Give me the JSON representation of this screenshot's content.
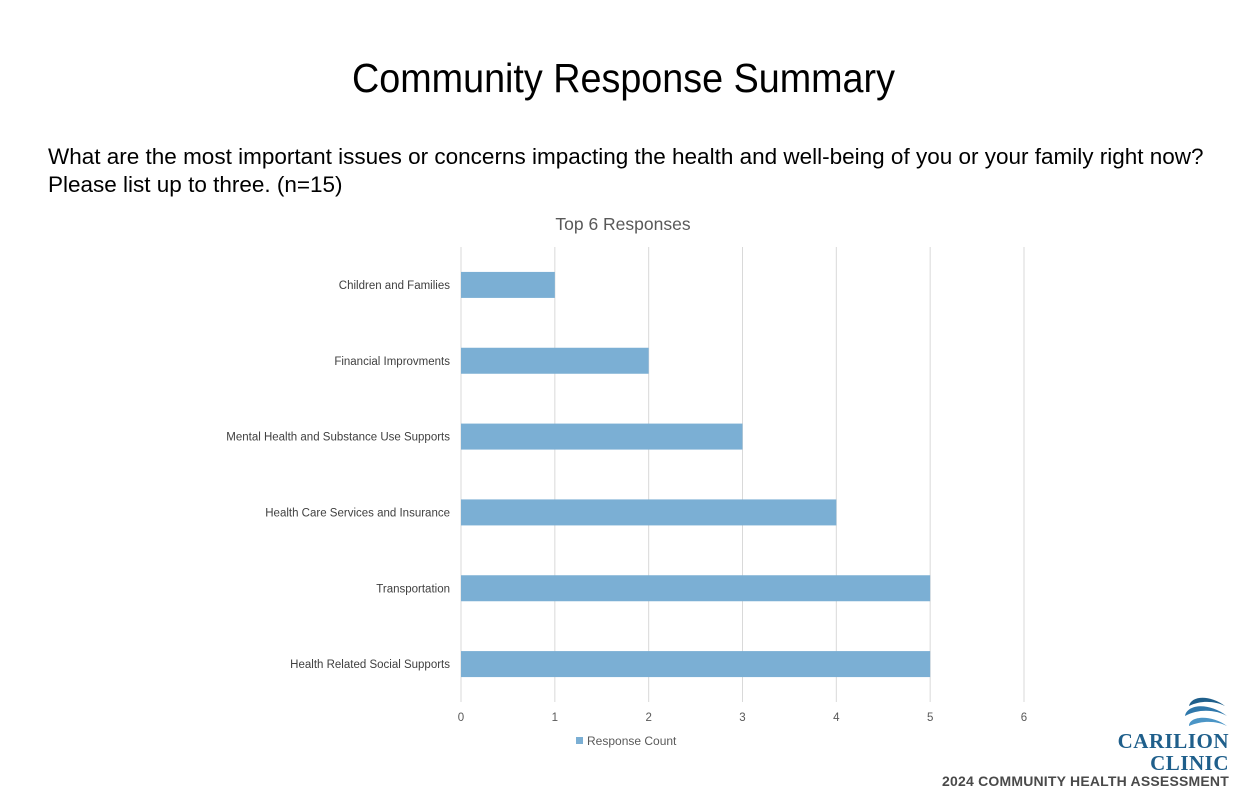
{
  "page": {
    "title": "Community Response Summary",
    "question": "What are the most important issues or concerns impacting the health and well-being of you or your family right now? Please list up to three. (n=15)"
  },
  "chart_data": {
    "type": "bar",
    "orientation": "horizontal",
    "title": "Top 6 Responses",
    "categories": [
      "Children and Families",
      "Financial Improvments",
      "Mental Health and Substance Use Supports",
      "Health Care Services and Insurance",
      "Transportation",
      "Health Related Social Supports"
    ],
    "series": [
      {
        "name": "Response Count",
        "values": [
          1,
          2,
          3,
          4,
          5,
          5
        ],
        "color": "#7bafd4"
      }
    ],
    "xlim": [
      0,
      6
    ],
    "xticks": [
      0,
      1,
      2,
      3,
      4,
      5,
      6
    ],
    "grid": true,
    "legend_position": "bottom",
    "xlabel": "",
    "ylabel": ""
  },
  "branding": {
    "logo_line1": "CARILION",
    "logo_line2": "CLINIC",
    "footer": "2024 COMMUNITY HEALTH ASSESSMENT",
    "brand_color": "#1f5f8b"
  }
}
